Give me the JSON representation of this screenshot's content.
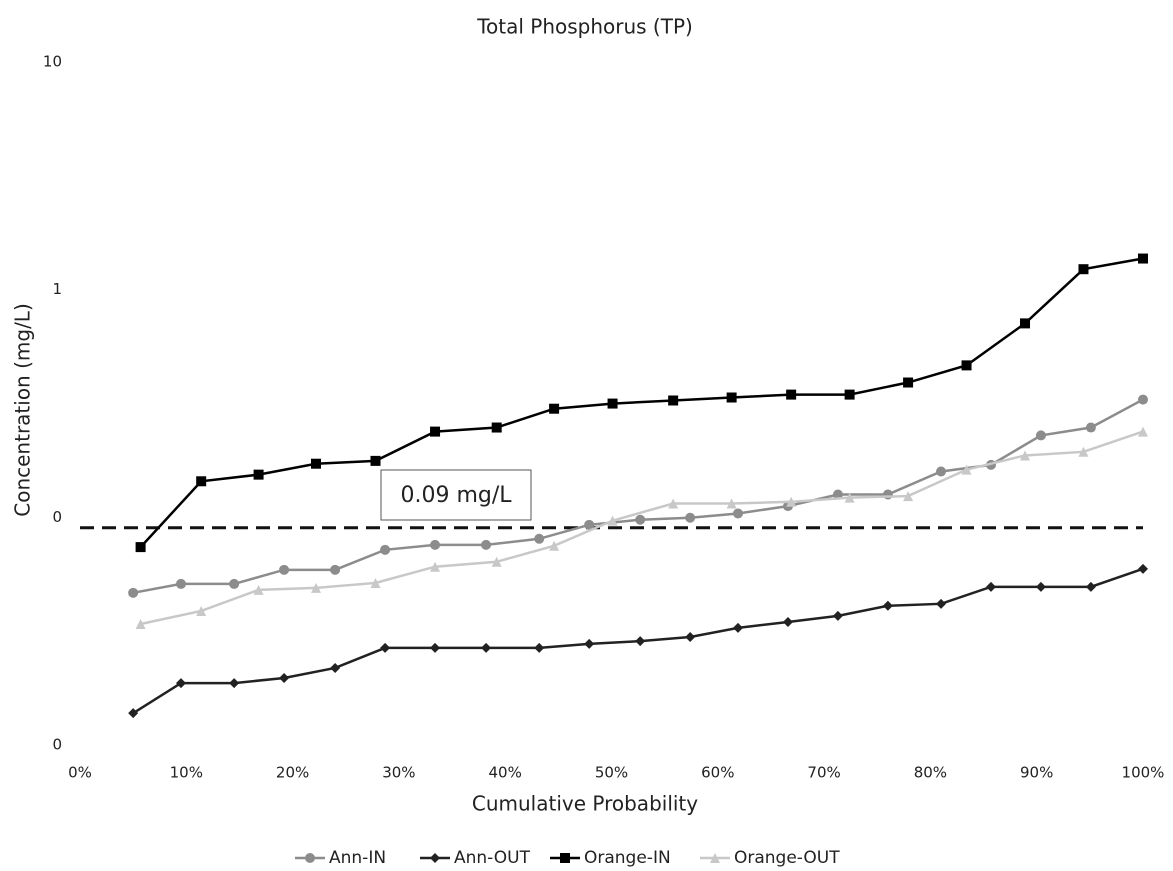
{
  "chart_data": {
    "type": "line",
    "title": "Total Phosphorus (TP)",
    "x_label": "Cumulative Probability",
    "y_label": "Concentration (mg/L)",
    "log_y": true,
    "grid": false,
    "legend": "bottom",
    "xlim": [
      0,
      100
    ],
    "xticks": [
      {
        "value": 0,
        "label": "0%"
      },
      {
        "value": 10,
        "label": "10%"
      },
      {
        "value": 20,
        "label": "20%"
      },
      {
        "value": 30,
        "label": "30%"
      },
      {
        "value": 40,
        "label": "40%"
      },
      {
        "value": 50,
        "label": "50%"
      },
      {
        "value": 60,
        "label": "60%"
      },
      {
        "value": 70,
        "label": "70%"
      },
      {
        "value": 80,
        "label": "80%"
      },
      {
        "value": 90,
        "label": "90%"
      },
      {
        "value": 100,
        "label": "100%"
      }
    ],
    "ylim": [
      0.01,
      10
    ],
    "yticks": [
      {
        "value": 0.01,
        "label": "0"
      },
      {
        "value": 0.1,
        "label": "0"
      },
      1,
      10
    ],
    "threshold": {
      "value": 0.09,
      "label": "0.09 mg/L"
    },
    "series": [
      {
        "name": "Ann-IN",
        "color": "#8c8c8c",
        "marker": "circle",
        "x": [
          5.0,
          9.5,
          14.5,
          19.2,
          24.0,
          28.7,
          33.4,
          38.2,
          43.2,
          47.9,
          52.7,
          57.4,
          61.9,
          66.6,
          71.3,
          76.0,
          81.0,
          85.7,
          90.4,
          95.1,
          100
        ],
        "values": [
          0.0466,
          0.051,
          0.051,
          0.0588,
          0.0588,
          0.072,
          0.0757,
          0.0757,
          0.0805,
          0.0927,
          0.0976,
          0.0996,
          0.104,
          0.112,
          0.126,
          0.126,
          0.159,
          0.17,
          0.229,
          0.248,
          0.329
        ]
      },
      {
        "name": "Ann-OUT",
        "color": "#222222",
        "marker": "diamond",
        "x": [
          5.0,
          9.5,
          14.5,
          19.2,
          24.0,
          28.7,
          33.4,
          38.2,
          43.2,
          47.9,
          52.7,
          57.4,
          61.9,
          66.6,
          71.3,
          76.0,
          81.0,
          85.7,
          90.4,
          95.1,
          100
        ],
        "values": [
          0.0138,
          0.0187,
          0.0187,
          0.0197,
          0.0218,
          0.0267,
          0.0267,
          0.0267,
          0.0267,
          0.0278,
          0.0286,
          0.0298,
          0.0327,
          0.0347,
          0.0369,
          0.0409,
          0.0417,
          0.0495,
          0.0495,
          0.0495,
          0.0594
        ]
      },
      {
        "name": "Orange-IN",
        "color": "#000000",
        "marker": "square",
        "x": [
          5.7,
          11.4,
          16.8,
          22.2,
          27.8,
          33.4,
          39.2,
          44.6,
          50.1,
          55.8,
          61.3,
          66.9,
          72.4,
          77.9,
          83.4,
          88.9,
          94.4,
          100
        ],
        "values": [
          0.074,
          0.144,
          0.154,
          0.172,
          0.177,
          0.238,
          0.248,
          0.3,
          0.316,
          0.326,
          0.336,
          0.346,
          0.346,
          0.391,
          0.465,
          0.711,
          1.23,
          1.37
        ]
      },
      {
        "name": "Orange-OUT",
        "color": "#c8c8c8",
        "marker": "triangle",
        "x": [
          5.7,
          11.4,
          16.8,
          22.2,
          27.8,
          33.4,
          39.2,
          44.6,
          50.1,
          55.8,
          61.3,
          66.9,
          72.4,
          77.9,
          83.4,
          88.9,
          94.4,
          100
        ],
        "values": [
          0.034,
          0.0388,
          0.048,
          0.049,
          0.0515,
          0.0607,
          0.0638,
          0.075,
          0.0967,
          0.115,
          0.115,
          0.117,
          0.122,
          0.124,
          0.162,
          0.187,
          0.194,
          0.238
        ]
      }
    ]
  }
}
